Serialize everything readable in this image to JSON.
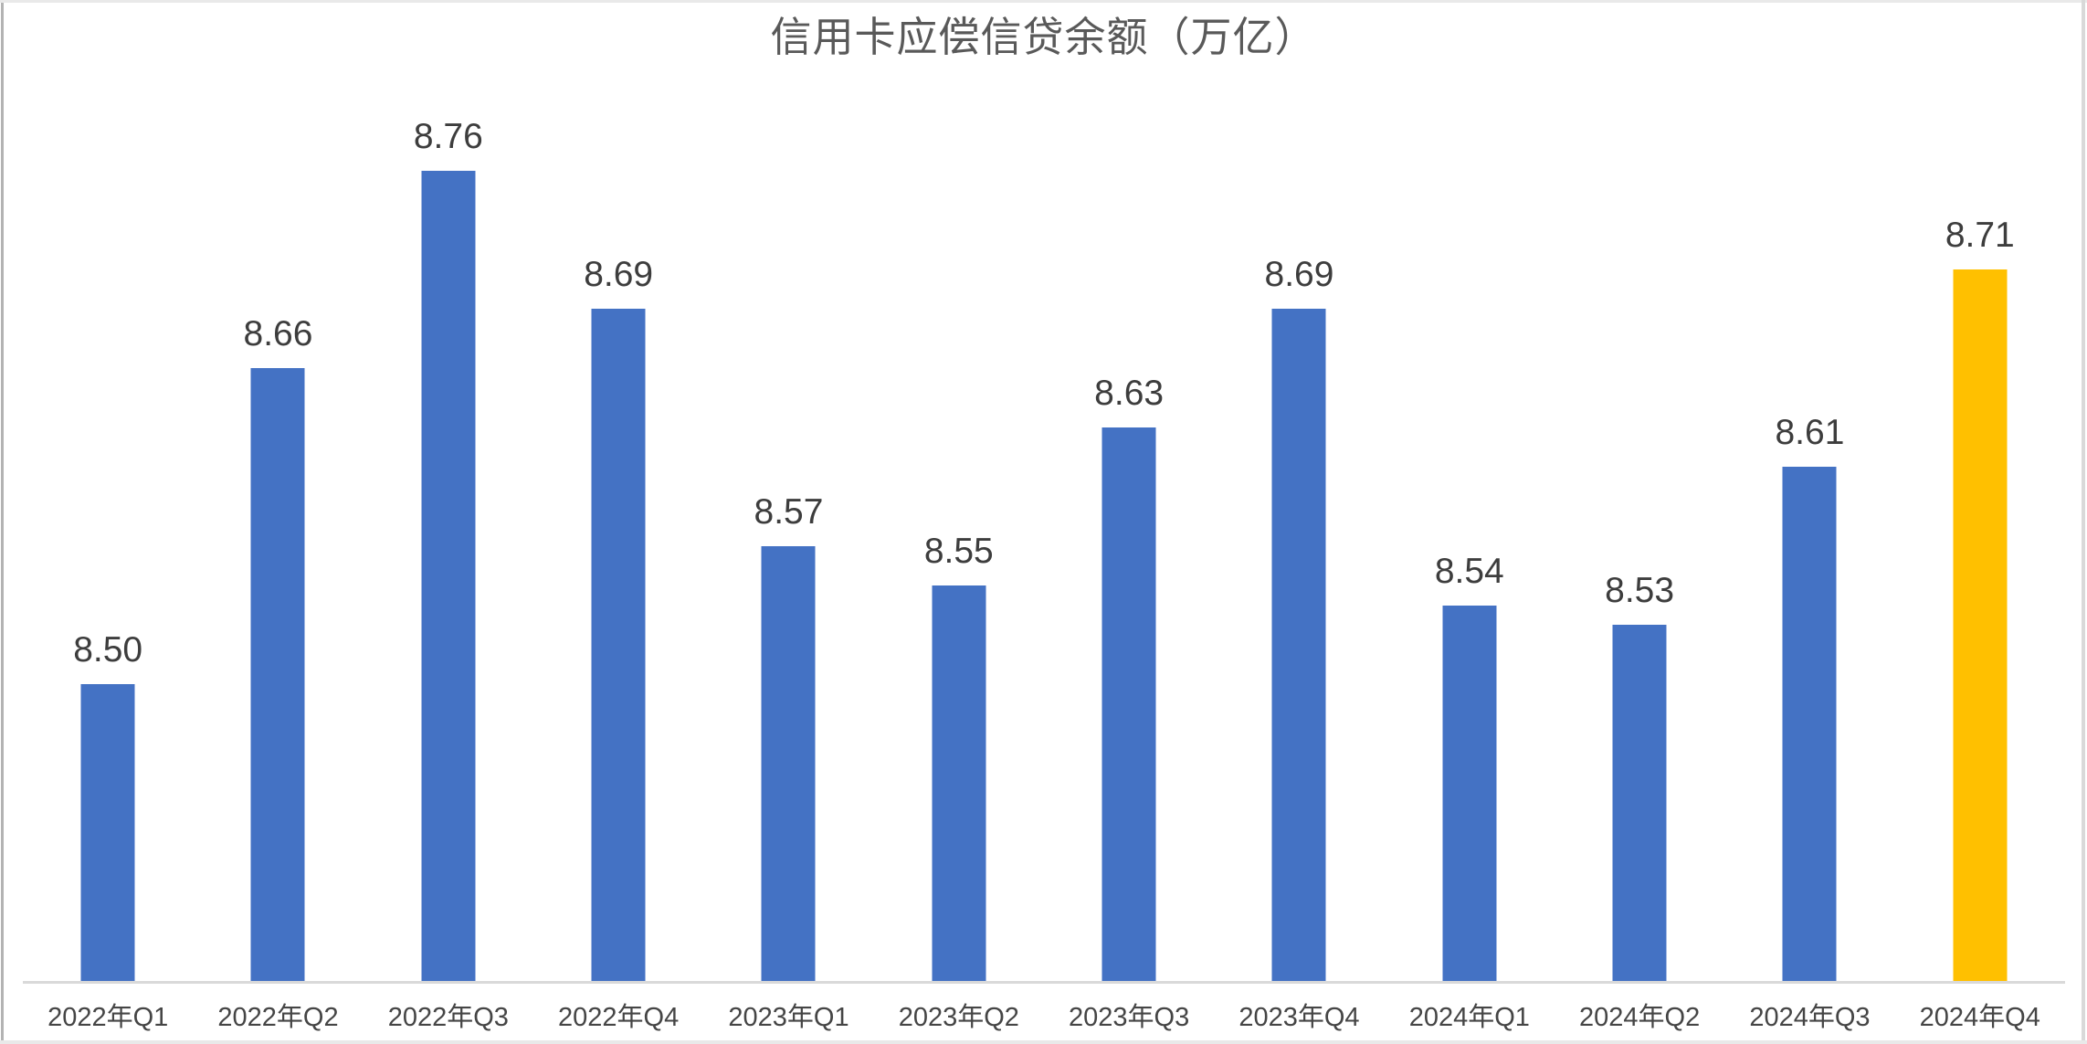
{
  "chart_data": {
    "type": "bar",
    "title": "信用卡应偿信贷余额（万亿）",
    "categories": [
      "2022年Q1",
      "2022年Q2",
      "2022年Q3",
      "2022年Q4",
      "2023年Q1",
      "2023年Q2",
      "2023年Q3",
      "2023年Q4",
      "2024年Q1",
      "2024年Q2",
      "2024年Q3",
      "2024年Q4"
    ],
    "values": [
      8.5,
      8.66,
      8.76,
      8.69,
      8.57,
      8.55,
      8.63,
      8.69,
      8.54,
      8.53,
      8.61,
      8.71
    ],
    "value_labels": [
      "8.50",
      "8.66",
      "8.76",
      "8.69",
      "8.57",
      "8.55",
      "8.63",
      "8.69",
      "8.54",
      "8.53",
      "8.61",
      "8.71"
    ],
    "highlight_index": 11,
    "xlabel": "",
    "ylabel": "",
    "ylim": [
      8.35,
      8.8
    ],
    "grid": false,
    "legend": "none",
    "data_labels": "above-bars",
    "colors": {
      "bar": "#4472C4",
      "highlight_bar": "#FFC000",
      "axis_line": "#D9D9D9",
      "title_text": "#595959",
      "value_label_text": "#3D3D3D",
      "category_label_text": "#454545",
      "background": "#FFFFFF"
    }
  }
}
